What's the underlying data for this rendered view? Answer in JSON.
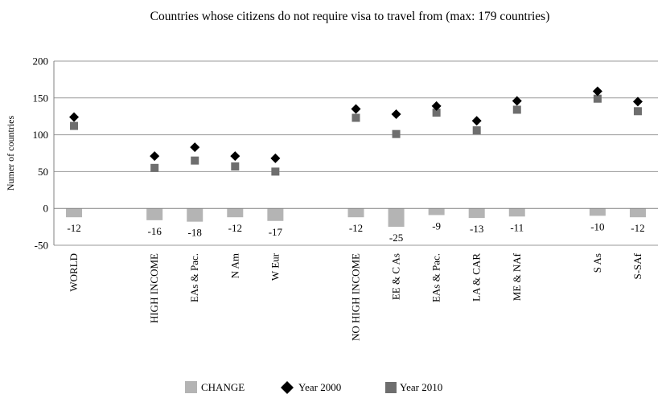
{
  "chart_data": {
    "type": "bar",
    "title": "Countries whose citizens do not require visa to travel from (max: 179 countries)",
    "xlabel": "",
    "ylabel": "Numer of countries",
    "ylim": [
      -50,
      200
    ],
    "yticks": [
      -50,
      0,
      50,
      100,
      150,
      200
    ],
    "grid": true,
    "legend_position": "bottom",
    "categories": [
      "WORLD",
      "",
      "HIGH INCOME",
      "EAs & Pac.",
      "N Am",
      "W Eur",
      "",
      "NO HIGH INCOME",
      "EE & C As",
      "EAs & Pac.",
      "LA & CAR",
      "ME & NAf",
      "",
      "S As",
      "S-SAf"
    ],
    "series": [
      {
        "name": "CHANGE",
        "marker": "bar",
        "color": "#b4b4b4",
        "values": [
          -12,
          null,
          -16,
          -18,
          -12,
          -17,
          null,
          -12,
          -25,
          -9,
          -13,
          -11,
          null,
          -10,
          -12
        ]
      },
      {
        "name": "Year 2000",
        "marker": "diamond",
        "color": "#000000",
        "values": [
          124,
          null,
          71,
          83,
          71,
          68,
          null,
          135,
          128,
          139,
          119,
          146,
          null,
          159,
          145
        ]
      },
      {
        "name": "Year 2010",
        "marker": "square",
        "color": "#6e6e6e",
        "values": [
          112,
          null,
          55,
          65,
          57,
          50,
          null,
          123,
          101,
          130,
          106,
          134,
          null,
          149,
          132
        ]
      }
    ],
    "data_labels": [
      "-12",
      "",
      "-16",
      "-18",
      "-12",
      "-17",
      "",
      "-12",
      "-25",
      "-9",
      "-13",
      "-11",
      "",
      "-10",
      "-12"
    ]
  }
}
